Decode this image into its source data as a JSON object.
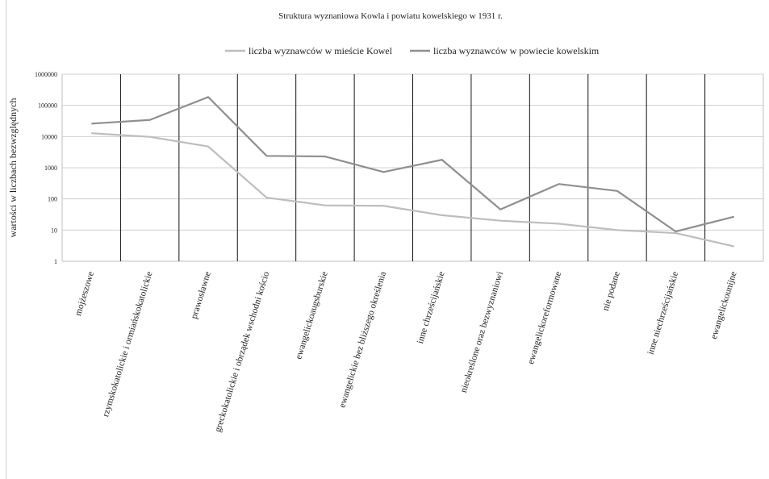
{
  "chart_data": {
    "type": "line",
    "title": "Struktura wyznaniowa Kowla i powiatu kowelskiego w 1931 r.",
    "ylabel": "wartości w liczbach bezwzględnych",
    "xlabel": "",
    "yscale": "log",
    "ylim": [
      1,
      1000000
    ],
    "yticks": [
      "1",
      "10",
      "100",
      "1000",
      "10000",
      "100000",
      "1000000"
    ],
    "grid": true,
    "legend_position": "top",
    "categories": [
      "mojżeszowe",
      "rzymskokatolickie i ormiańskokatolickie",
      "prawosławne",
      "greckokatolickie i obrządek wschodni kościo",
      "ewangelickoaugsburskie",
      "ewangelickie bez bliższego określenia",
      "inne chrześcijańskie",
      "nieokreślone oraz bezwyznaniowi",
      "ewangelickoreformowane",
      "nie podane",
      "inne niechrześcijańskie",
      "ewangelickounijne"
    ],
    "series": [
      {
        "name": "liczba wyznawców w mieście Kowel",
        "color": "#bdbdbd",
        "values": [
          12800,
          9800,
          4800,
          110,
          62,
          60,
          30,
          20,
          16,
          10,
          8,
          3
        ]
      },
      {
        "name": "liczba wyznawców w powiecie kowelskim",
        "color": "#8f8f8f",
        "values": [
          26000,
          34000,
          185000,
          2400,
          2300,
          730,
          1800,
          46,
          300,
          180,
          9,
          27
        ]
      }
    ]
  }
}
